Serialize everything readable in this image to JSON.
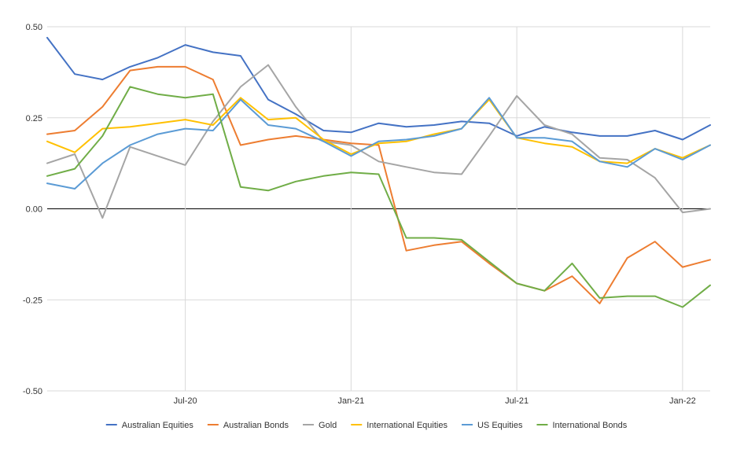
{
  "chart_data": {
    "type": "line",
    "title": "",
    "xlabel": "",
    "ylabel": "",
    "ylim": [
      -0.5,
      0.5
    ],
    "yticks": [
      0.5,
      0.25,
      0,
      -0.25,
      -0.5
    ],
    "ytick_labels": [
      "0.50",
      "0.25",
      "0.00",
      "-0.25",
      "-0.50"
    ],
    "xtick_labels": [
      {
        "label": "Jul-20",
        "index": 5
      },
      {
        "label": "Jan-21",
        "index": 11
      },
      {
        "label": "Jul-21",
        "index": 17
      },
      {
        "label": "Jan-22",
        "index": 23
      }
    ],
    "grid": true,
    "legend_position": "bottom",
    "series": [
      {
        "name": "Australian Equities",
        "color": "#4472c4",
        "values": [
          0.47,
          0.37,
          0.355,
          0.39,
          0.415,
          0.45,
          0.43,
          0.42,
          0.3,
          0.26,
          0.215,
          0.21,
          0.235,
          0.225,
          0.23,
          0.24,
          0.235,
          0.2,
          0.225,
          0.21,
          0.2,
          0.2,
          0.215,
          0.19,
          0.23
        ]
      },
      {
        "name": "Australian Bonds",
        "color": "#ed7d31",
        "values": [
          0.205,
          0.215,
          0.28,
          0.38,
          0.39,
          0.39,
          0.355,
          0.175,
          0.19,
          0.2,
          0.19,
          0.18,
          0.175,
          -0.115,
          -0.1,
          -0.09,
          -0.15,
          -0.205,
          -0.225,
          -0.185,
          -0.26,
          -0.135,
          -0.09,
          -0.16,
          -0.14
        ]
      },
      {
        "name": "Gold",
        "color": "#a5a5a5",
        "values": [
          0.125,
          0.15,
          -0.025,
          0.17,
          0.145,
          0.12,
          0.24,
          0.335,
          0.395,
          0.28,
          0.185,
          0.175,
          0.13,
          0.115,
          0.1,
          0.095,
          0.2,
          0.31,
          0.23,
          0.205,
          0.14,
          0.135,
          0.085,
          -0.01,
          0.0
        ]
      },
      {
        "name": "International Equities",
        "color": "#ffc000",
        "values": [
          0.185,
          0.155,
          0.22,
          0.225,
          0.235,
          0.245,
          0.23,
          0.305,
          0.245,
          0.25,
          0.19,
          0.15,
          0.18,
          0.185,
          0.205,
          0.22,
          0.3,
          0.195,
          0.18,
          0.17,
          0.13,
          0.125,
          0.165,
          0.14,
          0.175
        ]
      },
      {
        "name": "US Equities",
        "color": "#5b9bd5",
        "values": [
          0.07,
          0.055,
          0.125,
          0.175,
          0.205,
          0.22,
          0.215,
          0.3,
          0.23,
          0.22,
          0.185,
          0.145,
          0.185,
          0.19,
          0.2,
          0.22,
          0.305,
          0.195,
          0.195,
          0.185,
          0.13,
          0.115,
          0.165,
          0.135,
          0.175
        ]
      },
      {
        "name": "International Bonds",
        "color": "#70ad47",
        "values": [
          0.09,
          0.11,
          0.2,
          0.335,
          0.315,
          0.305,
          0.315,
          0.06,
          0.05,
          0.075,
          0.09,
          0.1,
          0.095,
          -0.08,
          -0.08,
          -0.085,
          -0.145,
          -0.205,
          -0.225,
          -0.15,
          -0.245,
          -0.24,
          -0.24,
          -0.27,
          -0.21
        ]
      }
    ]
  }
}
